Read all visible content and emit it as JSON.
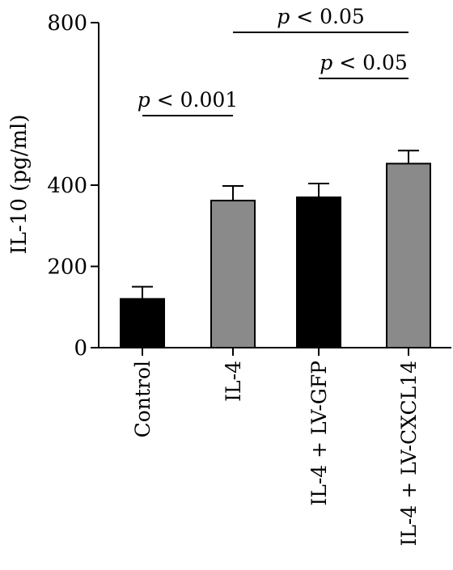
{
  "chart_data": {
    "type": "bar",
    "title": "",
    "xlabel": "",
    "ylabel": "IL-10 (pg/ml)",
    "ylim": [
      0,
      800
    ],
    "yticks": [
      0,
      200,
      400,
      800
    ],
    "categories": [
      "Control",
      "IL-4",
      "IL-4 + LV-GFP",
      "IL-4 + LV-CXCL14"
    ],
    "values": [
      120,
      362,
      370,
      453
    ],
    "errors": [
      30,
      36,
      34,
      32
    ],
    "colors": [
      "#000000",
      "#8a8a8a",
      "#000000",
      "#8a8a8a"
    ],
    "grid": false,
    "significance": [
      {
        "from": 0,
        "to": 1,
        "label_prefix": "p",
        "label_rest": " < 0.001"
      },
      {
        "from": 2,
        "to": 3,
        "label_prefix": "p",
        "label_rest": " < 0.05"
      },
      {
        "from": 1,
        "to": 3,
        "label_prefix": "p",
        "label_rest": " < 0.05"
      }
    ]
  }
}
